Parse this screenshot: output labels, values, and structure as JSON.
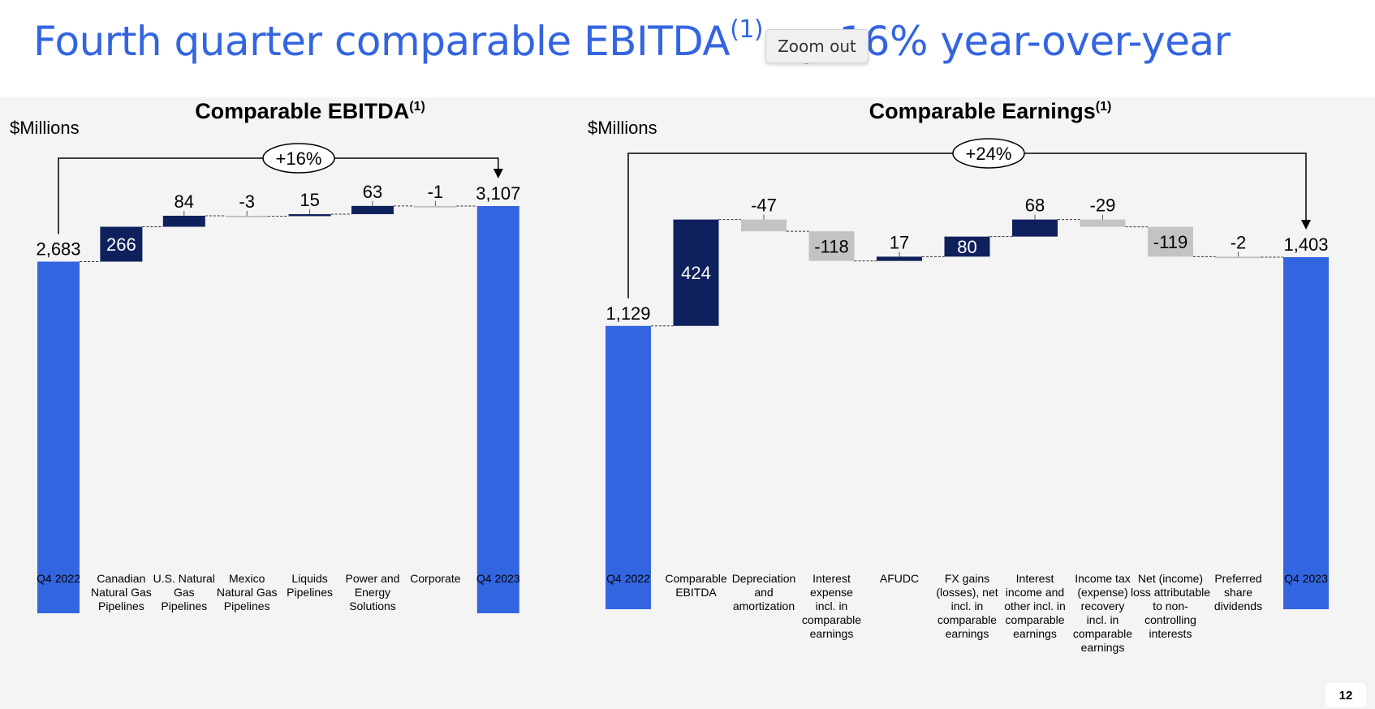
{
  "slide": {
    "title": "Fourth quarter comparable EBITDA",
    "title_sup": "(1)",
    "title_rest": " up 16% year-over-year",
    "zoom_out_label": "Zoom out",
    "page_number": "12"
  },
  "colors": {
    "title": "#3465e0",
    "total": "#3465e0",
    "positive": "#0f215c",
    "negative": "#c3c3c3",
    "background": "#f4f4f4"
  },
  "chart_data": [
    {
      "type": "bar",
      "variant": "waterfall",
      "title": "Comparable EBITDA",
      "title_sup": "(1)",
      "ylabel": "$Millions",
      "ylim": [
        0,
        3107
      ],
      "change_label": "+16%",
      "categories": [
        [
          "Q4 2022"
        ],
        [
          "Canadian",
          "Natural Gas",
          "Pipelines"
        ],
        [
          "U.S. Natural",
          "Gas",
          "Pipelines"
        ],
        [
          "Mexico",
          "Natural Gas",
          "Pipelines"
        ],
        [
          "Liquids",
          "Pipelines"
        ],
        [
          "Power and",
          "Energy",
          "Solutions"
        ],
        [
          "Corporate"
        ],
        [
          "Q4 2023"
        ]
      ],
      "kinds": [
        "total",
        "delta",
        "delta",
        "delta",
        "delta",
        "delta",
        "delta",
        "total"
      ],
      "values": [
        2683,
        266,
        84,
        -3,
        15,
        63,
        -1,
        3107
      ],
      "data_labels": [
        "2,683",
        "266",
        "84",
        "-3",
        "15",
        "63",
        "-1",
        "3,107"
      ]
    },
    {
      "type": "bar",
      "variant": "waterfall",
      "title": "Comparable Earnings",
      "title_sup": "(1)",
      "ylabel": "$Millions",
      "ylim": [
        0,
        1403
      ],
      "change_label": "+24%",
      "categories": [
        [
          "Q4 2022"
        ],
        [
          "Comparable",
          "EBITDA"
        ],
        [
          "Depreciation",
          "and",
          "amortization"
        ],
        [
          "Interest",
          "expense",
          "incl. in",
          "comparable",
          "earnings"
        ],
        [
          "AFUDC"
        ],
        [
          "FX gains",
          "(losses), net",
          "incl. in",
          "comparable",
          "earnings"
        ],
        [
          "Interest",
          "income and",
          "other incl. in",
          "comparable",
          "earnings"
        ],
        [
          "Income tax",
          "(expense)",
          "recovery",
          "incl. in",
          "comparable",
          "earnings"
        ],
        [
          "Net (income)",
          "loss attributable",
          "to non-",
          "controlling",
          "interests"
        ],
        [
          "Preferred",
          "share",
          "dividends"
        ],
        [
          "Q4 2023"
        ]
      ],
      "kinds": [
        "total",
        "delta",
        "delta",
        "delta",
        "delta",
        "delta",
        "delta",
        "delta",
        "delta",
        "delta",
        "total"
      ],
      "values": [
        1129,
        424,
        -47,
        -118,
        17,
        80,
        68,
        -29,
        -119,
        -2,
        1403
      ],
      "data_labels": [
        "1,129",
        "424",
        "-47",
        "-118",
        "17",
        "80",
        "68",
        "-29",
        "-119",
        "-2",
        "1,403"
      ]
    }
  ]
}
